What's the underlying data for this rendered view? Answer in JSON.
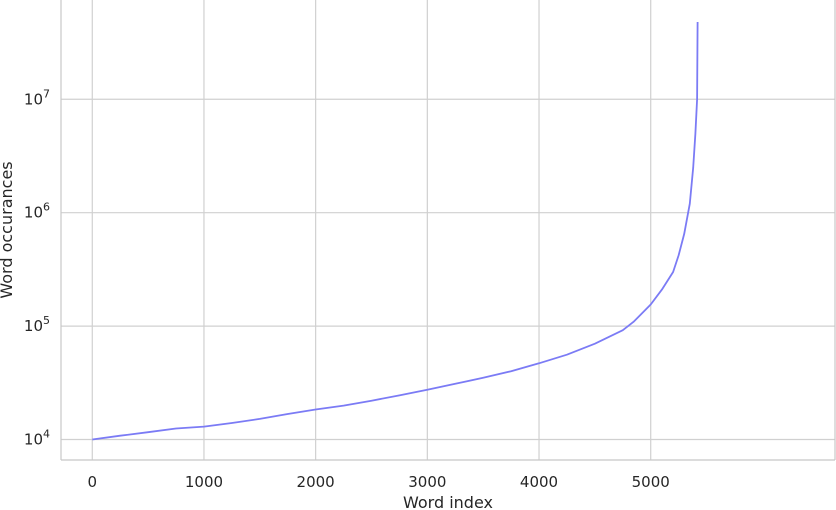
{
  "chart_data": {
    "type": "line",
    "title": "",
    "xlabel": "Word index",
    "ylabel": "Word occurances",
    "xlim": [
      -280,
      6650
    ],
    "ylim": [
      6600,
      75000000
    ],
    "yscale": "log",
    "grid": true,
    "line_color": "#7b7bf5",
    "x_ticks": [
      {
        "value": 0,
        "label": "0"
      },
      {
        "value": 1000,
        "label": "1000"
      },
      {
        "value": 2000,
        "label": "2000"
      },
      {
        "value": 3000,
        "label": "3000"
      },
      {
        "value": 4000,
        "label": "4000"
      },
      {
        "value": 5000,
        "label": "5000"
      }
    ],
    "y_ticks": [
      {
        "value": 10000,
        "base": "10",
        "exp": "4"
      },
      {
        "value": 100000,
        "base": "10",
        "exp": "5"
      },
      {
        "value": 1000000,
        "base": "10",
        "exp": "6"
      },
      {
        "value": 10000000,
        "base": "10",
        "exp": "7"
      }
    ],
    "series": [
      {
        "x": [
          0,
          250,
          500,
          750,
          1000,
          1250,
          1500,
          1750,
          2000,
          2250,
          2500,
          2750,
          3000,
          3250,
          3500,
          3750,
          4000,
          4250,
          4500,
          4750,
          4850,
          5000,
          5100,
          5200,
          5250,
          5300,
          5350,
          5380,
          5400,
          5415,
          5420
        ],
        "y": [
          10000,
          10800,
          11600,
          12500,
          13000,
          14000,
          15200,
          16800,
          18400,
          19900,
          22000,
          24500,
          27500,
          31000,
          35000,
          40000,
          47000,
          56000,
          70000,
          92000,
          110000,
          155000,
          210000,
          300000,
          420000,
          650000,
          1200000,
          2500000,
          5000000,
          10000000,
          48000000
        ]
      }
    ]
  }
}
